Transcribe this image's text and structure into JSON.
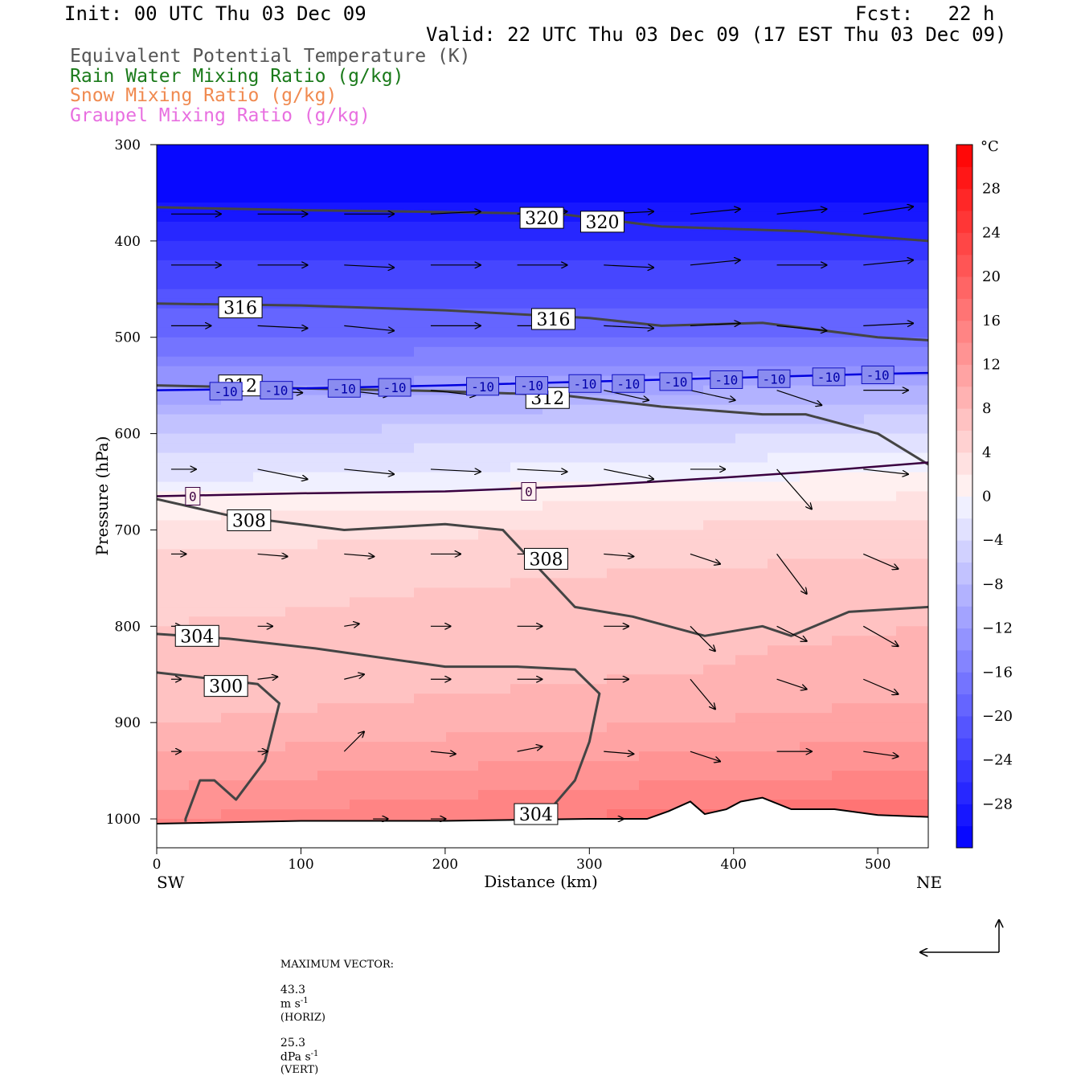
{
  "header": {
    "init": "Init: 00 UTC Thu 03 Dec 09",
    "fcst": "Fcst:   22 h",
    "valid": "Valid: 22 UTC Thu 03 Dec 09 (17 EST Thu 03 Dec 09)"
  },
  "legend": [
    {
      "label": "Equivalent Potential Temperature (K)",
      "color": "#555555"
    },
    {
      "label": "Rain Water Mixing Ratio (g/kg)",
      "color": "#1a7a1a"
    },
    {
      "label": "Snow Mixing Ratio (g/kg)",
      "color": "#f08a50"
    },
    {
      "label": "Graupel Mixing Ratio (g/kg)",
      "color": "#e86fe0"
    }
  ],
  "footer": {
    "max_vector_label": "MAXIMUM VECTOR:",
    "horiz_value": "43.3",
    "horiz_unit": "m s",
    "horiz_exp": "-1",
    "horiz_tag": "(HORIZ)",
    "vert_value": "25.3",
    "vert_unit": "dPa s",
    "vert_exp": "-1",
    "vert_tag": "(VERT)"
  },
  "chart_data": {
    "type": "heatmap",
    "title": "",
    "xlabel": "Distance (km)",
    "ylabel": "Pressure (hPa)",
    "xlim": [
      0,
      535
    ],
    "ylim": [
      1030,
      300
    ],
    "x_ticks": [
      0,
      100,
      200,
      300,
      400,
      500
    ],
    "y_ticks": [
      300,
      400,
      500,
      600,
      700,
      800,
      900,
      1000
    ],
    "x_end_labels": {
      "left": "SW",
      "right": "NE"
    },
    "colorbar": {
      "unit": "°C",
      "ticks": [
        28,
        24,
        20,
        16,
        12,
        8,
        4,
        0,
        -4,
        -8,
        -12,
        -16,
        -20,
        -24,
        -28
      ],
      "range": [
        -32,
        32
      ]
    },
    "temperature_field": {
      "profile_sw": [
        [
          300,
          -32
        ],
        [
          330,
          -32
        ],
        [
          360,
          -30
        ],
        [
          400,
          -26
        ],
        [
          450,
          -22
        ],
        [
          500,
          -18
        ],
        [
          550,
          -12
        ],
        [
          600,
          -6
        ],
        [
          650,
          -2
        ],
        [
          660,
          0
        ],
        [
          700,
          3
        ],
        [
          750,
          5
        ],
        [
          800,
          6
        ],
        [
          850,
          6
        ],
        [
          900,
          8
        ],
        [
          950,
          11
        ],
        [
          1000,
          14
        ]
      ],
      "profile_ne": [
        [
          300,
          -32
        ],
        [
          330,
          -32
        ],
        [
          360,
          -30
        ],
        [
          400,
          -26
        ],
        [
          450,
          -22
        ],
        [
          500,
          -18
        ],
        [
          550,
          -10
        ],
        [
          600,
          -4
        ],
        [
          640,
          0
        ],
        [
          700,
          5
        ],
        [
          750,
          7
        ],
        [
          800,
          8
        ],
        [
          850,
          9
        ],
        [
          900,
          11
        ],
        [
          950,
          14
        ],
        [
          1000,
          18
        ]
      ]
    },
    "isotherm_m10": {
      "label": "-10",
      "color": "#0000dd",
      "x": [
        0,
        100,
        200,
        300,
        400,
        500,
        535
      ],
      "p": [
        555,
        553,
        550,
        546,
        542,
        538,
        537
      ]
    },
    "isotherm_0": {
      "label": "0",
      "color": "#3a0040",
      "x": [
        0,
        100,
        200,
        300,
        400,
        450,
        535
      ],
      "p": [
        665,
        662,
        660,
        654,
        645,
        640,
        630
      ]
    },
    "theta_e_contours": [
      {
        "value": "320",
        "x": [
          0,
          100,
          200,
          280,
          350,
          450,
          535
        ],
        "p": [
          365,
          368,
          370,
          372,
          385,
          390,
          400
        ]
      },
      {
        "value": "316",
        "x": [
          0,
          100,
          200,
          300,
          350,
          420,
          500,
          535
        ],
        "p": [
          465,
          467,
          472,
          480,
          488,
          485,
          500,
          503
        ]
      },
      {
        "value": "312",
        "x": [
          0,
          100,
          200,
          280,
          350,
          420,
          450,
          500,
          535
        ],
        "p": [
          550,
          553,
          556,
          560,
          572,
          580,
          580,
          600,
          632
        ]
      },
      {
        "value": "308",
        "x": [
          0,
          50,
          130,
          200,
          240,
          290,
          330,
          380,
          420,
          440,
          480,
          535
        ],
        "p": [
          668,
          685,
          700,
          694,
          700,
          780,
          790,
          810,
          800,
          810,
          785,
          780
        ]
      },
      {
        "value": "304",
        "x": [
          0,
          50,
          110,
          200,
          250,
          290,
          307,
          300,
          290,
          270
        ],
        "p": [
          808,
          813,
          823,
          842,
          842,
          845,
          870,
          920,
          960,
          995
        ]
      },
      {
        "value": "300",
        "x": [
          0,
          70,
          85,
          75,
          55,
          40,
          30,
          20,
          20
        ],
        "p": [
          848,
          860,
          880,
          940,
          980,
          960,
          960,
          1000,
          1003
        ]
      }
    ],
    "contour_label_positions": [
      {
        "value": "320",
        "x": 267,
        "p": 376
      },
      {
        "value": "320",
        "x": 309,
        "p": 380
      },
      {
        "value": "316",
        "x": 58,
        "p": 469
      },
      {
        "value": "316",
        "x": 275,
        "p": 481
      },
      {
        "value": "312",
        "x": 58,
        "p": 550
      },
      {
        "value": "312",
        "x": 271,
        "p": 563
      },
      {
        "value": "308",
        "x": 64,
        "p": 690
      },
      {
        "value": "308",
        "x": 270,
        "p": 730
      },
      {
        "value": "304",
        "x": 28,
        "p": 810
      },
      {
        "value": "304",
        "x": 263,
        "p": 995
      },
      {
        "value": "300",
        "x": 48,
        "p": 862
      }
    ],
    "m10_label_positions": [
      {
        "x": 48,
        "p": 556
      },
      {
        "x": 83,
        "p": 555
      },
      {
        "x": 130,
        "p": 553
      },
      {
        "x": 165,
        "p": 552
      },
      {
        "x": 226,
        "p": 551
      },
      {
        "x": 260,
        "p": 550
      },
      {
        "x": 297,
        "p": 548
      },
      {
        "x": 327,
        "p": 548
      },
      {
        "x": 360,
        "p": 546
      },
      {
        "x": 395,
        "p": 544
      },
      {
        "x": 428,
        "p": 543
      },
      {
        "x": 466,
        "p": 541
      },
      {
        "x": 500,
        "p": 539
      }
    ],
    "zero_label_positions": [
      {
        "x": 25,
        "p": 665
      },
      {
        "x": 258,
        "p": 660
      }
    ],
    "terrain_x": [
      0,
      100,
      200,
      300,
      340,
      355,
      370,
      380,
      395,
      405,
      420,
      440,
      470,
      500,
      535
    ],
    "terrain_p": [
      1005,
      1002,
      1002,
      1000,
      1000,
      992,
      982,
      995,
      990,
      982,
      978,
      990,
      990,
      996,
      998
    ],
    "wind_vector_rows": [
      {
        "p": 372,
        "x": [
          10,
          70,
          130,
          190,
          250,
          310,
          370,
          430,
          490
        ],
        "u": [
          1.0,
          1.0,
          1.0,
          1.0,
          1.0,
          1.0,
          1.0,
          1.0,
          1.0
        ],
        "v": [
          0.0,
          0.0,
          0.0,
          -0.05,
          -0.05,
          -0.05,
          -0.1,
          -0.1,
          -0.15
        ]
      },
      {
        "p": 425,
        "x": [
          10,
          70,
          130,
          190,
          250,
          310,
          370,
          430,
          490
        ],
        "u": [
          1.0,
          1.0,
          1.0,
          1.0,
          1.0,
          1.0,
          1.0,
          1.0,
          1.0
        ],
        "v": [
          0.0,
          0.0,
          0.05,
          0.0,
          0.0,
          0.05,
          -0.1,
          0.0,
          -0.1
        ]
      },
      {
        "p": 488,
        "x": [
          10,
          70,
          130,
          190,
          250,
          310,
          370,
          430,
          490
        ],
        "u": [
          0.8,
          1.0,
          1.0,
          1.0,
          1.0,
          1.0,
          1.0,
          1.0,
          1.0
        ],
        "v": [
          0.0,
          0.05,
          0.1,
          0.0,
          0.0,
          0.05,
          -0.05,
          0.1,
          -0.05
        ]
      },
      {
        "p": 555,
        "x": [
          70,
          130,
          190,
          250,
          310,
          370,
          430,
          490
        ],
        "u": [
          0.9,
          0.9,
          0.9,
          0.9,
          0.9,
          0.9,
          0.9,
          0.9
        ],
        "v": [
          0.05,
          0.1,
          0.1,
          0.2,
          0.2,
          0.2,
          0.3,
          0.0
        ]
      },
      {
        "p": 637,
        "x": [
          10,
          70,
          130,
          190,
          250,
          310,
          370,
          430,
          490
        ],
        "u": [
          0.5,
          1.0,
          1.0,
          1.0,
          1.0,
          1.0,
          0.7,
          0.7,
          0.9
        ],
        "v": [
          0.0,
          0.2,
          0.1,
          0.05,
          0.05,
          0.2,
          0.0,
          0.8,
          0.1
        ]
      },
      {
        "p": 725,
        "x": [
          10,
          70,
          130,
          190,
          250,
          310,
          370,
          430,
          490
        ],
        "u": [
          0.3,
          0.6,
          0.6,
          0.6,
          0.6,
          0.6,
          0.6,
          0.6,
          0.7
        ],
        "v": [
          0.0,
          0.05,
          0.05,
          0.0,
          0.0,
          0.05,
          0.2,
          0.8,
          0.3
        ]
      },
      {
        "p": 800,
        "x": [
          10,
          70,
          130,
          190,
          250,
          310,
          370,
          430,
          490
        ],
        "u": [
          0.2,
          0.3,
          0.3,
          0.4,
          0.5,
          0.5,
          0.5,
          0.6,
          0.7
        ],
        "v": [
          0.0,
          0.0,
          -0.05,
          0.0,
          0.0,
          0.0,
          0.5,
          0.3,
          0.4
        ]
      },
      {
        "p": 855,
        "x": [
          10,
          70,
          130,
          190,
          250,
          310,
          370,
          430,
          490
        ],
        "u": [
          0.2,
          0.4,
          0.4,
          0.4,
          0.5,
          0.5,
          0.5,
          0.6,
          0.7
        ],
        "v": [
          0.0,
          -0.05,
          -0.1,
          0.0,
          0.0,
          0.0,
          0.6,
          0.2,
          0.3
        ]
      },
      {
        "p": 930,
        "x": [
          10,
          70,
          130,
          190,
          250,
          310,
          370,
          430,
          490
        ],
        "u": [
          0.2,
          0.2,
          0.4,
          0.5,
          0.5,
          0.6,
          0.6,
          0.7,
          0.7
        ],
        "v": [
          0.0,
          0.0,
          -0.4,
          0.05,
          -0.1,
          0.05,
          0.2,
          0.0,
          0.1
        ]
      },
      {
        "p": 1000,
        "x": [
          150,
          190,
          250,
          310
        ],
        "u": [
          0.3,
          0.3,
          0.3,
          0.4
        ],
        "v": [
          0.0,
          0.0,
          0.0,
          0.0
        ]
      }
    ]
  }
}
